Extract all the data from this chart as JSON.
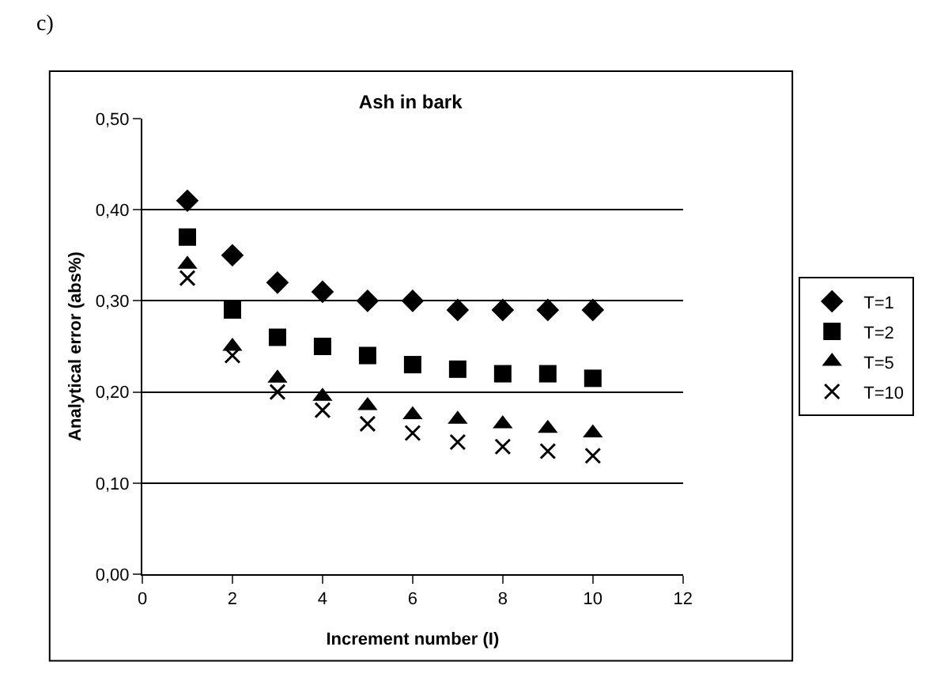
{
  "chart_data": {
    "type": "scatter",
    "title": "Ash in bark",
    "xlabel": "Increment number (I)",
    "ylabel": "Analytical error (abs%)",
    "annotations": [
      "c)"
    ],
    "x": [
      1,
      2,
      3,
      4,
      5,
      6,
      7,
      8,
      9,
      10
    ],
    "series": [
      {
        "name": "T=1",
        "color": "#000000",
        "marker": "diamond",
        "values": [
          0.41,
          0.35,
          0.32,
          0.31,
          0.3,
          0.3,
          0.29,
          0.29,
          0.29,
          0.29
        ]
      },
      {
        "name": "T=2",
        "color": "#000000",
        "marker": "square",
        "values": [
          0.37,
          0.29,
          0.26,
          0.25,
          0.24,
          0.23,
          0.225,
          0.22,
          0.22,
          0.215
        ]
      },
      {
        "name": "T=5",
        "color": "#000000",
        "marker": "triangle",
        "values": [
          0.34,
          0.25,
          0.215,
          0.195,
          0.185,
          0.175,
          0.17,
          0.165,
          0.16,
          0.155
        ]
      },
      {
        "name": "T=10",
        "color": "#000000",
        "marker": "cross",
        "values": [
          0.325,
          0.24,
          0.2,
          0.18,
          0.165,
          0.155,
          0.145,
          0.14,
          0.135,
          0.13
        ]
      }
    ],
    "xlim": [
      0,
      12
    ],
    "xticks": [
      0,
      2,
      4,
      6,
      8,
      10,
      12
    ],
    "ylim": [
      0,
      0.5
    ],
    "yticks": [
      {
        "value": 0,
        "label": "0,00"
      },
      {
        "value": 0.1,
        "label": "0,10"
      },
      {
        "value": 0.2,
        "label": "0,20"
      },
      {
        "value": 0.3,
        "label": "0,30"
      },
      {
        "value": 0.4,
        "label": "0,40"
      },
      {
        "value": 0.5,
        "label": "0,50"
      }
    ],
    "grid": "y",
    "legend": "right"
  }
}
